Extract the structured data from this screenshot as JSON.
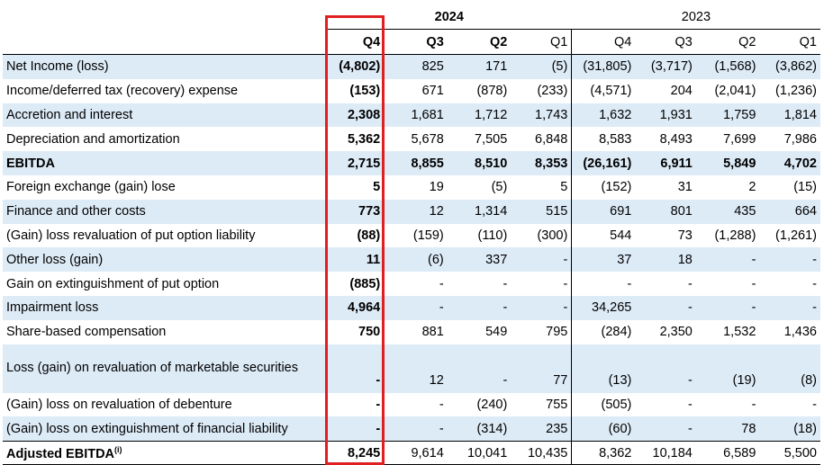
{
  "years": {
    "y2024": "2024",
    "y2023": "2023"
  },
  "quarters": [
    "Q4",
    "Q3",
    "Q2",
    "Q1",
    "Q4",
    "Q3",
    "Q2",
    "Q1"
  ],
  "rows": [
    {
      "label": "Net Income (loss)",
      "values": [
        "(4,802)",
        "825",
        "171",
        "(5)",
        "(31,805)",
        "(3,717)",
        "(1,568)",
        "(3,862)"
      ]
    },
    {
      "label": "Income/deferred tax (recovery) expense",
      "values": [
        "(153)",
        "671",
        "(878)",
        "(233)",
        "(4,571)",
        "204",
        "(2,041)",
        "(1,236)"
      ]
    },
    {
      "label": "Accretion and interest",
      "values": [
        "2,308",
        "1,681",
        "1,712",
        "1,743",
        "1,632",
        "1,931",
        "1,759",
        "1,814"
      ]
    },
    {
      "label": "Depreciation and amortization",
      "values": [
        "5,362",
        "5,678",
        "7,505",
        "6,848",
        "8,583",
        "8,493",
        "7,699",
        "7,986"
      ]
    },
    {
      "label": "EBITDA",
      "values": [
        "2,715",
        "8,855",
        "8,510",
        "8,353",
        "(26,161)",
        "6,911",
        "5,849",
        "4,702"
      ]
    },
    {
      "label": "Foreign exchange (gain) lose",
      "values": [
        "5",
        "19",
        "(5)",
        "5",
        "(152)",
        "31",
        "2",
        "(15)"
      ]
    },
    {
      "label": "Finance and other costs",
      "values": [
        "773",
        "12",
        "1,314",
        "515",
        "691",
        "801",
        "435",
        "664"
      ]
    },
    {
      "label": "(Gain) loss revaluation of put option liability",
      "values": [
        "(88)",
        "(159)",
        "(110)",
        "(300)",
        "544",
        "73",
        "(1,288)",
        "(1,261)"
      ]
    },
    {
      "label": "Other loss (gain)",
      "values": [
        "11",
        "(6)",
        "337",
        "-",
        "37",
        "18",
        "-",
        "-"
      ]
    },
    {
      "label": "Gain on extinguishment of put option",
      "values": [
        "(885)",
        "-",
        "-",
        "-",
        "-",
        "-",
        "-",
        "-"
      ]
    },
    {
      "label": "Impairment loss",
      "values": [
        "4,964",
        "-",
        "-",
        "-",
        "34,265",
        "-",
        "-",
        "-"
      ]
    },
    {
      "label": "Share-based compensation",
      "values": [
        "750",
        "881",
        "549",
        "795",
        "(284)",
        "2,350",
        "1,532",
        "1,436"
      ]
    },
    {
      "label": "Loss (gain) on revaluation of marketable securities",
      "values": [
        "-",
        "12",
        "-",
        "77",
        "(13)",
        "-",
        "(19)",
        "(8)"
      ]
    },
    {
      "label": "(Gain) loss on revaluation of debenture",
      "values": [
        "-",
        "-",
        "(240)",
        "755",
        "(505)",
        "-",
        "-",
        "-"
      ]
    },
    {
      "label": "(Gain) loss on extinguishment of financial liability",
      "values": [
        "-",
        "-",
        "(314)",
        "235",
        "(60)",
        "-",
        "78",
        "(18)"
      ]
    }
  ],
  "total": {
    "label": "Adjusted EBITDA",
    "footnote": "(i)",
    "values": [
      "8,245",
      "9,614",
      "10,041",
      "10,435",
      "8,362",
      "10,184",
      "6,589",
      "5,500"
    ]
  },
  "highlight_color": "#ddebf7",
  "box_color": "#e02020"
}
